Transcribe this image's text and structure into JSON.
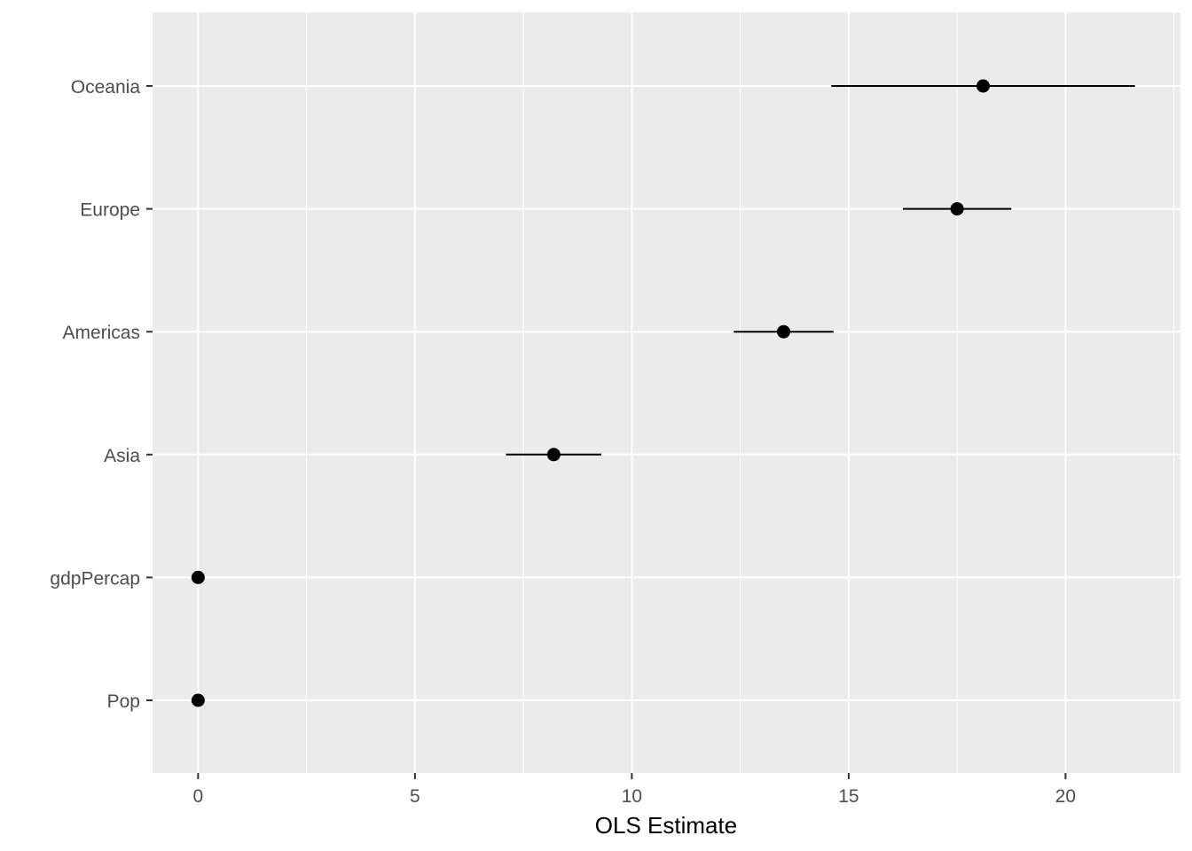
{
  "chart_data": {
    "type": "scatter",
    "subtype": "coefficient-plot",
    "title": "",
    "xlabel": "OLS Estimate",
    "ylabel": "",
    "xlim": [
      -1.05,
      22.65
    ],
    "x_ticks": [
      0,
      5,
      10,
      15,
      20
    ],
    "x_tick_labels": [
      "0",
      "5",
      "10",
      "15",
      "20"
    ],
    "grid": true,
    "legend": "none",
    "background_color": "#ebebeb",
    "grid_color": "#ffffff",
    "point_color": "#000000",
    "categories": [
      "Pop",
      "gdpPercap",
      "Asia",
      "Americas",
      "Europe",
      "Oceania"
    ],
    "estimates": [
      0.0,
      0.0,
      8.2,
      13.5,
      17.5,
      18.1
    ],
    "ci_low": [
      0.0,
      0.0,
      7.1,
      12.35,
      16.25,
      14.6
    ],
    "ci_high": [
      0.0,
      0.0,
      9.3,
      14.65,
      18.75,
      21.6
    ]
  }
}
